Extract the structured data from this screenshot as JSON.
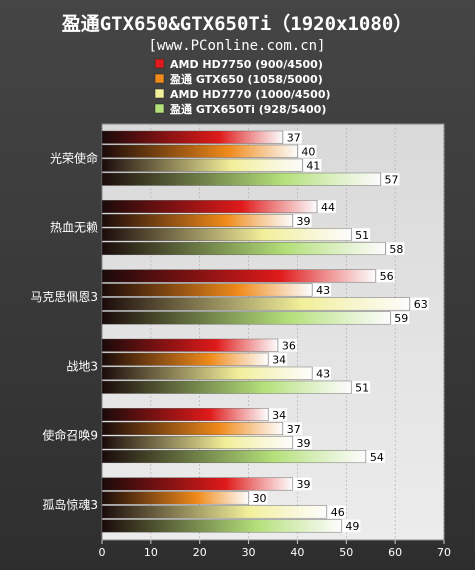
{
  "chart_data": {
    "type": "bar",
    "orientation": "horizontal",
    "title": "盈通GTX650&GTX650Ti（1920x1080）",
    "subtitle": "[www.PConline.com.cn]",
    "categories": [
      "光荣使命",
      "热血无赖",
      "马克思佩恩3",
      "战地3",
      "使命召唤9",
      "孤岛惊魂3"
    ],
    "series": [
      {
        "name": "AMD HD7750 (900/4500)",
        "values": [
          37,
          44,
          56,
          36,
          34,
          39
        ],
        "color": "#e01a1a"
      },
      {
        "name": "盈通 GTX650 (1058/5000)",
        "values": [
          40,
          39,
          43,
          34,
          37,
          30
        ],
        "color": "#f08a1a"
      },
      {
        "name": "AMD HD7770 (1000/4500)",
        "values": [
          41,
          51,
          63,
          43,
          39,
          46
        ],
        "color": "#f2ef9a"
      },
      {
        "name": "盈通 GTX650Ti (928/5400)",
        "values": [
          57,
          58,
          59,
          51,
          54,
          49
        ],
        "color": "#b4e07a"
      }
    ],
    "xlim": [
      0,
      70
    ],
    "xticks": [
      0,
      10,
      20,
      30,
      40,
      50,
      60,
      70
    ],
    "grid": true,
    "legend": "top"
  }
}
